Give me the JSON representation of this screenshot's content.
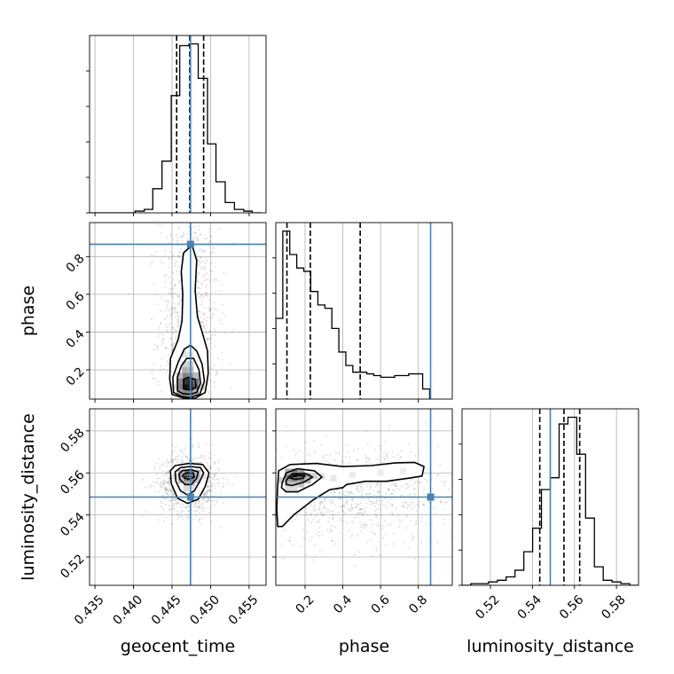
{
  "chart_data": {
    "type": "corner",
    "parameters": [
      "geocent_time",
      "phase",
      "luminosity_distance"
    ],
    "axis_labels": {
      "geocent_time": "geocent_time",
      "phase": "phase",
      "luminosity_distance": "luminosity_distance"
    },
    "ranges": {
      "geocent_time": [
        0.4343,
        0.4572
      ],
      "phase": [
        0.045,
        0.98
      ],
      "luminosity_distance": [
        0.5065,
        0.5905
      ]
    },
    "ticks": {
      "geocent_time": [
        0.435,
        0.44,
        0.445,
        0.45,
        0.455
      ],
      "phase": [
        0.2,
        0.4,
        0.6,
        0.8
      ],
      "phase_y": [
        0.2,
        0.4,
        0.6,
        0.8
      ],
      "luminosity_distance": [
        0.52,
        0.54,
        0.56,
        0.58
      ]
    },
    "tick_labels": {
      "geocent_time": [
        "0.435",
        "0.440",
        "0.445",
        "0.450",
        "0.455"
      ],
      "phase": [
        "0.2",
        "0.4",
        "0.6",
        "0.8"
      ],
      "phase_y": [
        "0.2",
        "0.4",
        "0.6",
        "0.8"
      ],
      "luminosity_distance": [
        "0.52",
        "0.54",
        "0.56",
        "0.58"
      ]
    },
    "truths": {
      "geocent_time": 0.4474,
      "phase": 0.865,
      "luminosity_distance": 0.5485
    },
    "quantiles": {
      "geocent_time": [
        0.4456,
        0.4473,
        0.4491
      ],
      "phase": [
        0.104,
        0.228,
        0.492
      ],
      "luminosity_distance": [
        0.5435,
        0.555,
        0.5625
      ]
    },
    "histograms": {
      "geocent_time": {
        "edges": [
          0.4343,
          0.4355,
          0.4367,
          0.4378,
          0.439,
          0.4402,
          0.4414,
          0.4425,
          0.4437,
          0.4449,
          0.446,
          0.4472,
          0.4484,
          0.4496,
          0.4507,
          0.4519,
          0.4531,
          0.4543,
          0.4554,
          0.4566
        ],
        "counts": [
          0,
          0,
          0,
          0,
          0,
          1,
          2,
          14,
          30,
          68,
          97,
          98,
          78,
          40,
          18,
          6,
          2,
          1,
          0
        ]
      },
      "phase": {
        "edges": [
          0.045,
          0.082,
          0.119,
          0.156,
          0.193,
          0.23,
          0.268,
          0.305,
          0.342,
          0.379,
          0.416,
          0.453,
          0.49,
          0.527,
          0.564,
          0.601,
          0.638,
          0.675,
          0.712,
          0.749,
          0.786,
          0.823,
          0.86
        ],
        "counts": [
          48,
          100,
          86,
          78,
          76,
          64,
          56,
          54,
          42,
          28,
          20,
          16,
          16,
          15,
          14,
          13,
          13,
          14,
          14,
          15,
          15,
          6
        ]
      },
      "luminosity_distance": {
        "edges": [
          0.5065,
          0.5107,
          0.5149,
          0.5191,
          0.5233,
          0.5275,
          0.5317,
          0.5359,
          0.5401,
          0.5443,
          0.5485,
          0.5527,
          0.5569,
          0.5611,
          0.5653,
          0.5695,
          0.5737,
          0.5779,
          0.5821,
          0.5863,
          0.5905
        ],
        "counts": [
          0,
          1,
          1,
          2,
          3,
          5,
          9,
          20,
          34,
          57,
          64,
          96,
          100,
          78,
          40,
          11,
          3,
          2,
          1,
          0
        ]
      }
    },
    "density_2d": {
      "phase_vs_geocent_time": {
        "x": "geocent_time",
        "y": "phase",
        "peak": [
          0.4474,
          0.13
        ],
        "contours": [
          [
            [
              0.4452,
              0.08
            ],
            [
              0.4451,
              0.16
            ],
            [
              0.4458,
              0.24
            ],
            [
              0.4466,
              0.31
            ],
            [
              0.4474,
              0.33
            ],
            [
              0.4482,
              0.3
            ],
            [
              0.4489,
              0.23
            ],
            [
              0.4492,
              0.14
            ],
            [
              0.4486,
              0.07
            ],
            [
              0.4474,
              0.055
            ],
            [
              0.4462,
              0.06
            ]
          ],
          [
            [
              0.4457,
              0.09
            ],
            [
              0.4457,
              0.16
            ],
            [
              0.4462,
              0.22
            ],
            [
              0.4469,
              0.26
            ],
            [
              0.4478,
              0.26
            ],
            [
              0.4485,
              0.2
            ],
            [
              0.4487,
              0.13
            ],
            [
              0.4482,
              0.08
            ],
            [
              0.4472,
              0.07
            ],
            [
              0.4463,
              0.075
            ]
          ],
          [
            [
              0.4465,
              0.1
            ],
            [
              0.4465,
              0.15
            ],
            [
              0.4471,
              0.16
            ],
            [
              0.448,
              0.15
            ],
            [
              0.4481,
              0.11
            ],
            [
              0.4476,
              0.095
            ],
            [
              0.4469,
              0.095
            ]
          ],
          [
            [
              0.445,
              0.07
            ],
            [
              0.4447,
              0.15
            ],
            [
              0.4448,
              0.26
            ],
            [
              0.4458,
              0.36
            ],
            [
              0.4463,
              0.46
            ],
            [
              0.4464,
              0.6
            ],
            [
              0.4462,
              0.72
            ],
            [
              0.4465,
              0.82
            ],
            [
              0.4476,
              0.86
            ],
            [
              0.4482,
              0.78
            ],
            [
              0.448,
              0.62
            ],
            [
              0.4483,
              0.48
            ],
            [
              0.4489,
              0.4
            ],
            [
              0.4496,
              0.3
            ],
            [
              0.4497,
              0.18
            ],
            [
              0.4493,
              0.08
            ],
            [
              0.448,
              0.05
            ],
            [
              0.4465,
              0.05
            ]
          ]
        ],
        "cells": [
          [
            0.4467,
            0.11,
            1.0
          ],
          [
            0.4474,
            0.11,
            0.95
          ],
          [
            0.4467,
            0.14,
            0.85
          ],
          [
            0.4474,
            0.14,
            0.9
          ],
          [
            0.4481,
            0.11,
            0.7
          ],
          [
            0.446,
            0.11,
            0.55
          ],
          [
            0.446,
            0.14,
            0.5
          ],
          [
            0.4481,
            0.14,
            0.6
          ],
          [
            0.4467,
            0.17,
            0.55
          ],
          [
            0.4474,
            0.17,
            0.5
          ],
          [
            0.446,
            0.08,
            0.4
          ],
          [
            0.4467,
            0.08,
            0.5
          ],
          [
            0.4474,
            0.08,
            0.5
          ],
          [
            0.4481,
            0.08,
            0.35
          ],
          [
            0.4467,
            0.2,
            0.35
          ],
          [
            0.4474,
            0.2,
            0.3
          ],
          [
            0.446,
            0.17,
            0.3
          ],
          [
            0.4481,
            0.17,
            0.3
          ],
          [
            0.4467,
            0.23,
            0.2
          ],
          [
            0.4474,
            0.23,
            0.2
          ],
          [
            0.4488,
            0.11,
            0.2
          ],
          [
            0.4453,
            0.11,
            0.15
          ],
          [
            0.4467,
            0.28,
            0.12
          ],
          [
            0.4474,
            0.28,
            0.1
          ]
        ]
      },
      "luminosity_distance_vs_geocent_time": {
        "x": "geocent_time",
        "y": "luminosity_distance",
        "peak": [
          0.4472,
          0.5585
        ],
        "contours": [
          [
            [
              0.4454,
              0.5605
            ],
            [
              0.4461,
              0.5625
            ],
            [
              0.4474,
              0.563
            ],
            [
              0.4487,
              0.5625
            ],
            [
              0.4491,
              0.56
            ],
            [
              0.4486,
              0.556
            ],
            [
              0.4479,
              0.5515
            ],
            [
              0.447,
              0.5495
            ],
            [
              0.4461,
              0.5515
            ],
            [
              0.4455,
              0.556
            ]
          ],
          [
            [
              0.4459,
              0.5595
            ],
            [
              0.4464,
              0.5612
            ],
            [
              0.4475,
              0.5615
            ],
            [
              0.4484,
              0.5605
            ],
            [
              0.4482,
              0.5575
            ],
            [
              0.4475,
              0.5545
            ],
            [
              0.4467,
              0.5545
            ],
            [
              0.446,
              0.557
            ]
          ],
          [
            [
              0.4464,
              0.559
            ],
            [
              0.4469,
              0.56
            ],
            [
              0.4478,
              0.5598
            ],
            [
              0.4479,
              0.558
            ],
            [
              0.4472,
              0.557
            ],
            [
              0.4466,
              0.5575
            ]
          ],
          [
            [
              0.4448,
              0.561
            ],
            [
              0.4454,
              0.5635
            ],
            [
              0.4472,
              0.5645
            ],
            [
              0.449,
              0.564
            ],
            [
              0.4498,
              0.56
            ],
            [
              0.4493,
              0.5535
            ],
            [
              0.4484,
              0.5475
            ],
            [
              0.447,
              0.5455
            ],
            [
              0.4457,
              0.548
            ],
            [
              0.4449,
              0.555
            ]
          ]
        ],
        "cells": [
          [
            0.4469,
            0.5585,
            1.0
          ],
          [
            0.4476,
            0.5585,
            0.8
          ],
          [
            0.4462,
            0.5585,
            0.6
          ],
          [
            0.4469,
            0.56,
            0.6
          ],
          [
            0.4476,
            0.56,
            0.55
          ],
          [
            0.4469,
            0.5565,
            0.55
          ],
          [
            0.4476,
            0.5565,
            0.5
          ],
          [
            0.4462,
            0.56,
            0.35
          ],
          [
            0.4483,
            0.5585,
            0.35
          ],
          [
            0.4462,
            0.5565,
            0.3
          ],
          [
            0.4483,
            0.56,
            0.3
          ],
          [
            0.4469,
            0.5545,
            0.3
          ],
          [
            0.4476,
            0.5545,
            0.25
          ],
          [
            0.4483,
            0.5565,
            0.25
          ],
          [
            0.4469,
            0.5525,
            0.15
          ],
          [
            0.4476,
            0.5525,
            0.12
          ],
          [
            0.4455,
            0.5585,
            0.15
          ],
          [
            0.449,
            0.5585,
            0.12
          ]
        ]
      },
      "luminosity_distance_vs_phase": {
        "x": "phase",
        "y": "luminosity_distance",
        "peak": [
          0.16,
          0.558
        ],
        "contours": [
          [
            [
              0.08,
              0.5555
            ],
            [
              0.1,
              0.56
            ],
            [
              0.16,
              0.562
            ],
            [
              0.25,
              0.561
            ],
            [
              0.29,
              0.558
            ],
            [
              0.24,
              0.5545
            ],
            [
              0.16,
              0.551
            ],
            [
              0.1,
              0.551
            ],
            [
              0.075,
              0.553
            ]
          ],
          [
            [
              0.1,
              0.5565
            ],
            [
              0.13,
              0.5595
            ],
            [
              0.2,
              0.5598
            ],
            [
              0.24,
              0.558
            ],
            [
              0.19,
              0.5555
            ],
            [
              0.13,
              0.554
            ],
            [
              0.1,
              0.5545
            ]
          ],
          [
            [
              0.12,
              0.5575
            ],
            [
              0.15,
              0.559
            ],
            [
              0.2,
              0.5588
            ],
            [
              0.19,
              0.5575
            ],
            [
              0.15,
              0.557
            ]
          ],
          [
            [
              0.055,
              0.554
            ],
            [
              0.06,
              0.561
            ],
            [
              0.12,
              0.564
            ],
            [
              0.26,
              0.5645
            ],
            [
              0.4,
              0.563
            ],
            [
              0.55,
              0.5635
            ],
            [
              0.68,
              0.5648
            ],
            [
              0.78,
              0.565
            ],
            [
              0.83,
              0.563
            ],
            [
              0.82,
              0.5585
            ],
            [
              0.75,
              0.5575
            ],
            [
              0.63,
              0.556
            ],
            [
              0.52,
              0.556
            ],
            [
              0.42,
              0.5545
            ],
            [
              0.4,
              0.553
            ],
            [
              0.33,
              0.552
            ],
            [
              0.24,
              0.547
            ],
            [
              0.14,
              0.54
            ],
            [
              0.08,
              0.5345
            ],
            [
              0.055,
              0.5345
            ],
            [
              0.05,
              0.543
            ]
          ]
        ],
        "cells": [
          [
            0.145,
            0.5585,
            1.0
          ],
          [
            0.18,
            0.5585,
            0.8
          ],
          [
            0.11,
            0.5585,
            0.6
          ],
          [
            0.145,
            0.5605,
            0.55
          ],
          [
            0.145,
            0.5565,
            0.6
          ],
          [
            0.18,
            0.5565,
            0.5
          ],
          [
            0.11,
            0.5565,
            0.45
          ],
          [
            0.215,
            0.5585,
            0.4
          ],
          [
            0.18,
            0.5605,
            0.4
          ],
          [
            0.11,
            0.5605,
            0.35
          ],
          [
            0.215,
            0.5565,
            0.3
          ],
          [
            0.25,
            0.5585,
            0.2
          ],
          [
            0.145,
            0.5545,
            0.3
          ],
          [
            0.11,
            0.5545,
            0.3
          ],
          [
            0.18,
            0.5545,
            0.25
          ],
          [
            0.075,
            0.5565,
            0.2
          ],
          [
            0.145,
            0.5525,
            0.15
          ],
          [
            0.11,
            0.5525,
            0.15
          ],
          [
            0.29,
            0.5585,
            0.12
          ],
          [
            0.35,
            0.5575,
            0.1
          ],
          [
            0.45,
            0.559,
            0.08
          ],
          [
            0.6,
            0.56,
            0.08
          ],
          [
            0.72,
            0.561,
            0.07
          ]
        ]
      }
    },
    "colors": {
      "truth": "#4682b4",
      "hist": "#000000",
      "grid": "#b0b0b0",
      "scatter": "#000000"
    },
    "grid": true
  }
}
